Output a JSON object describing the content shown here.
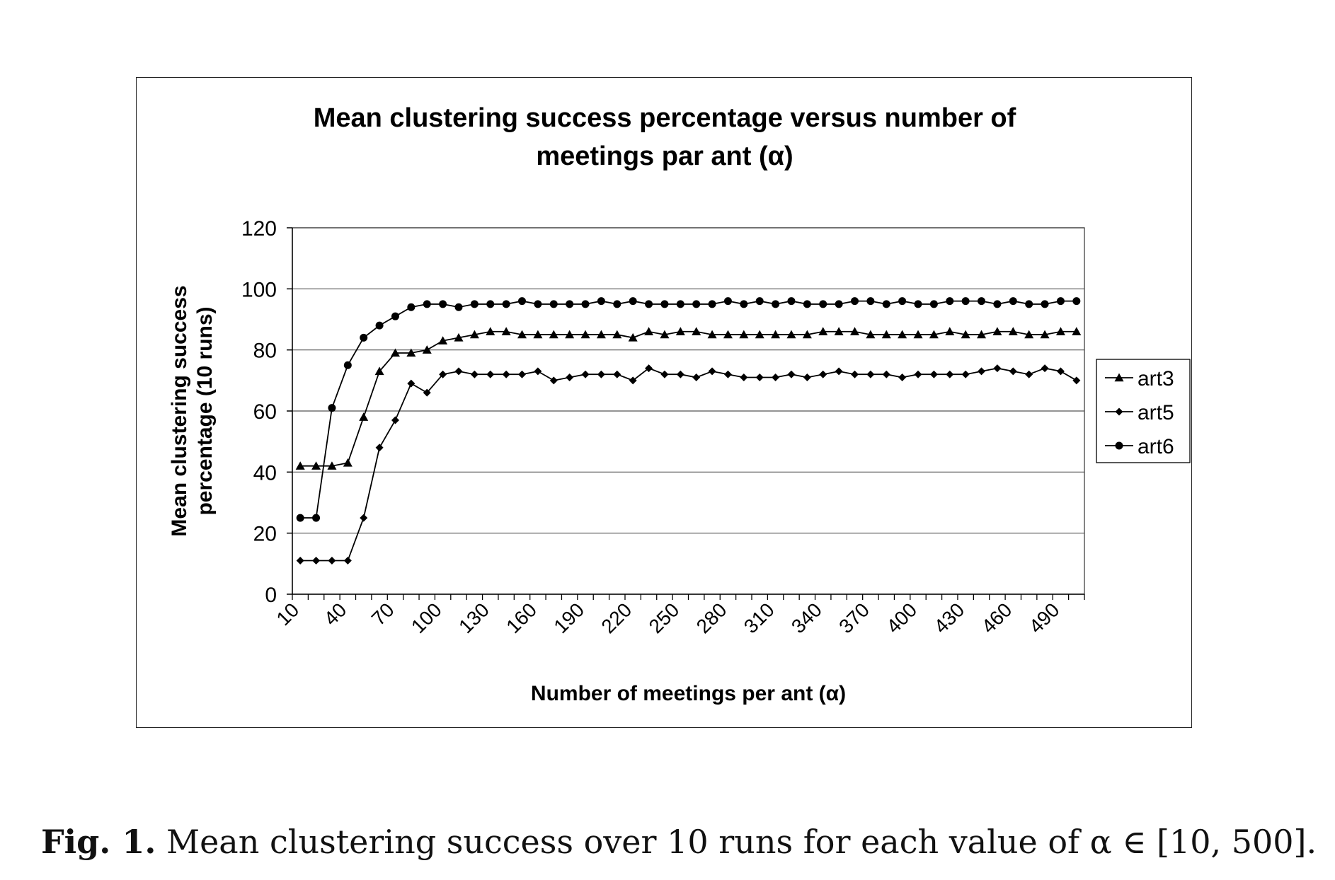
{
  "chart_data": {
    "type": "line",
    "title_line1": "Mean clustering success percentage versus number of",
    "title_line2": "meetings par ant (α)",
    "xlabel": "Number of meetings per ant (α)",
    "ylabel_line1": "Mean clustering success",
    "ylabel_line2": "percentage (10 runs)",
    "ylim": [
      0,
      120
    ],
    "yticks": [
      0,
      20,
      40,
      60,
      80,
      100,
      120
    ],
    "xticks_labels": [
      "10",
      "40",
      "70",
      "100",
      "130",
      "160",
      "190",
      "220",
      "250",
      "280",
      "310",
      "340",
      "370",
      "400",
      "430",
      "460",
      "490"
    ],
    "x": [
      10,
      20,
      30,
      40,
      50,
      60,
      70,
      80,
      90,
      100,
      110,
      120,
      130,
      140,
      150,
      160,
      170,
      180,
      190,
      200,
      210,
      220,
      230,
      240,
      250,
      260,
      270,
      280,
      290,
      300,
      310,
      320,
      330,
      340,
      350,
      360,
      370,
      380,
      390,
      400,
      410,
      420,
      430,
      440,
      450,
      460,
      470,
      480,
      490,
      500
    ],
    "grid": "horizontal",
    "legend_position": "right",
    "series": [
      {
        "name": "art3",
        "marker": "triangle",
        "values": [
          42,
          42,
          42,
          43,
          58,
          73,
          79,
          79,
          80,
          83,
          84,
          85,
          86,
          86,
          85,
          85,
          85,
          85,
          85,
          85,
          85,
          84,
          86,
          85,
          86,
          86,
          85,
          85,
          85,
          85,
          85,
          85,
          85,
          86,
          86,
          86,
          85,
          85,
          85,
          85,
          85,
          86,
          85,
          85,
          86,
          86,
          85,
          85,
          86,
          86
        ]
      },
      {
        "name": "art5",
        "marker": "diamond",
        "values": [
          11,
          11,
          11,
          11,
          25,
          48,
          57,
          69,
          66,
          72,
          73,
          72,
          72,
          72,
          72,
          73,
          70,
          71,
          72,
          72,
          72,
          70,
          74,
          72,
          72,
          71,
          73,
          72,
          71,
          71,
          71,
          72,
          71,
          72,
          73,
          72,
          72,
          72,
          71,
          72,
          72,
          72,
          72,
          73,
          74,
          73,
          72,
          74,
          73,
          70
        ]
      },
      {
        "name": "art6",
        "marker": "circle",
        "values": [
          25,
          25,
          61,
          75,
          84,
          88,
          91,
          94,
          95,
          95,
          94,
          95,
          95,
          95,
          96,
          95,
          95,
          95,
          95,
          96,
          95,
          96,
          95,
          95,
          95,
          95,
          95,
          96,
          95,
          96,
          95,
          96,
          95,
          95,
          95,
          96,
          96,
          95,
          96,
          95,
          95,
          96,
          96,
          96,
          95,
          96,
          95,
          95,
          96,
          96
        ]
      }
    ]
  },
  "caption": {
    "figure_label": "Fig. 1.",
    "text": "Mean clustering success over 10 runs for each value of α ∈ [10, 500]."
  },
  "colors": {
    "line": "#000000",
    "grid": "#555555"
  }
}
